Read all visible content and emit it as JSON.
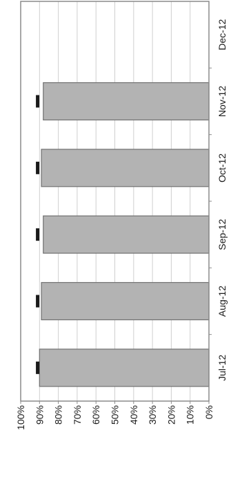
{
  "chart_data": {
    "type": "bar",
    "orientation": "rotated-90-clockwise",
    "categories": [
      "Jul-12",
      "Aug-12",
      "Sep-12",
      "Oct-12",
      "Nov-12",
      "Dec-12"
    ],
    "values": [
      90,
      89,
      88,
      89,
      88,
      null
    ],
    "marker_values": [
      91,
      91,
      91,
      91,
      91,
      null
    ],
    "value_axis": {
      "ticks": [
        "0%",
        "10%",
        "20%",
        "30%",
        "40%",
        "50%",
        "60%",
        "70%",
        "80%",
        "90%",
        "100%"
      ],
      "range": [
        0,
        100
      ]
    },
    "grid": true,
    "legend": "none",
    "colors": {
      "bar_fill": "#b3b3b3",
      "bar_stroke": "#707070",
      "marker": "#1a1a1a",
      "gridline": "#cfcfcf",
      "frame": "#8a8a8a"
    }
  }
}
